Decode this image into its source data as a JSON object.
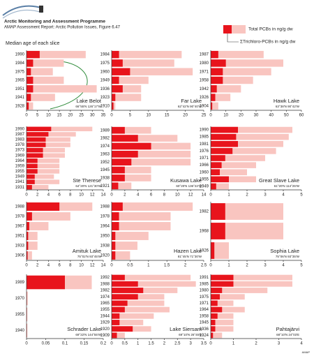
{
  "header": {
    "title": "Arctic Monitoring and Assessment Programme",
    "subtitle": "AMAP Assessment Report: Arctic Pollution Issues, Figure 6.47"
  },
  "legend": [
    "Total PCBs in ng/g dw",
    "ΣTrichloro-PCBs in ng/g dw"
  ],
  "y_axis_label": "Median age of each slice",
  "footer": "AMAP",
  "chart_data": [
    {
      "type": "hbar",
      "title": "Lake Belot",
      "subtitle": "66°55'N 126°17'W",
      "categories": [
        "1990",
        "1984",
        "1975",
        "1965",
        "1951",
        "1941",
        "1928"
      ],
      "series": [
        {
          "color": "#f9c5c0",
          "values": [
            27,
            17,
            12,
            17,
            32,
            13,
            3
          ]
        },
        {
          "color": "#e8141c",
          "values": [
            6,
            3,
            2,
            3,
            3,
            2,
            1
          ]
        }
      ],
      "xlim": [
        0,
        35
      ],
      "xticks": [
        0,
        5,
        10,
        15,
        20,
        25,
        30,
        35
      ]
    },
    {
      "type": "hbar",
      "title": "Far Lake",
      "subtitle": "62°42'N 90°40'W",
      "categories": [
        "1984",
        "1975",
        "1960",
        "1949",
        "1936",
        "1923",
        "1910"
      ],
      "series": [
        {
          "color": "#f9c5c0",
          "values": [
            19,
            17,
            22,
            10,
            8,
            8,
            1
          ]
        },
        {
          "color": "#e8141c",
          "values": [
            2,
            3,
            5,
            2,
            3,
            1,
            0.5
          ]
        }
      ],
      "xlim": [
        0,
        25
      ],
      "xticks": [
        0,
        5,
        10,
        15,
        20,
        25
      ]
    },
    {
      "type": "hbar",
      "title": "Hawk Lake",
      "subtitle": "63°38'N 90°42'W",
      "categories": [
        "1987",
        "1980",
        "1971",
        "1958",
        "1942",
        "1926",
        "1904"
      ],
      "series": [
        {
          "color": "#f9c5c0",
          "values": [
            35,
            48,
            40,
            28,
            20,
            13,
            5
          ]
        },
        {
          "color": "#e8141c",
          "values": [
            5,
            10,
            8,
            8,
            4,
            3,
            1
          ]
        }
      ],
      "xlim": [
        0,
        60
      ],
      "xticks": [
        0,
        10,
        20,
        30,
        40,
        50,
        60
      ]
    },
    {
      "type": "hbar",
      "title": "Ste Therese",
      "subtitle": "64°20'N 121°30'W",
      "categories": [
        "1990",
        "1987",
        "1983",
        "1978",
        "1973",
        "1969",
        "1964",
        "1959",
        "1955",
        "1949",
        "1941",
        "1931"
      ],
      "series": [
        {
          "color": "#f9c5c0",
          "values": [
            12,
            9,
            8,
            8,
            7,
            7,
            6,
            6,
            6,
            5,
            6,
            4
          ]
        },
        {
          "color": "#e8141c",
          "values": [
            4.5,
            4,
            3.5,
            3.5,
            3,
            3,
            2,
            2,
            2,
            1.5,
            1.5,
            1
          ]
        }
      ],
      "xlim": [
        0,
        14
      ],
      "xticks": [
        0,
        2,
        4,
        6,
        8,
        10,
        12,
        14
      ]
    },
    {
      "type": "hbar",
      "title": "Kusawa Lake",
      "subtitle": "60°20'N 136°22'W",
      "categories": [
        "1989",
        "1982",
        "1974",
        "1963",
        "1952",
        "1945",
        "1938",
        "1921"
      ],
      "series": [
        {
          "color": "#f9c5c0",
          "values": [
            6,
            10,
            12,
            12,
            12,
            6,
            6,
            3
          ]
        },
        {
          "color": "#e8141c",
          "values": [
            2,
            4,
            6,
            4,
            3,
            2,
            2,
            1
          ]
        }
      ],
      "xlim": [
        0,
        14
      ],
      "xticks": [
        0,
        2,
        4,
        6,
        8,
        10,
        12,
        14
      ]
    },
    {
      "type": "hbar",
      "title": "Great Slave Lake",
      "subtitle": "61°20'N 114°25'W",
      "categories": [
        "1990",
        "1985",
        "1981",
        "1976",
        "1971",
        "1966",
        "1960",
        "1955",
        "1949"
      ],
      "series": [
        {
          "color": "#f9c5c0",
          "values": [
            4.5,
            4.3,
            4,
            3.6,
            3,
            2.5,
            2,
            2.5,
            1
          ]
        },
        {
          "color": "#e8141c",
          "values": [
            1.5,
            1.4,
            1.5,
            1.2,
            0.8,
            0.6,
            0.5,
            1,
            0.3
          ]
        }
      ],
      "xlim": [
        0,
        5
      ],
      "xticks": [
        0,
        1,
        2,
        3,
        4,
        5
      ]
    },
    {
      "type": "hbar",
      "title": "Amituk Lake",
      "subtitle": "75°02'N 93°45'W",
      "categories": [
        "1988",
        "1978",
        "1967",
        "1951",
        "1933",
        "1906"
      ],
      "series": [
        {
          "color": "#f9c5c0",
          "values": [
            12,
            8,
            4,
            2,
            2,
            1
          ]
        },
        {
          "color": "#e8141c",
          "values": [
            6,
            1,
            0.5,
            0.3,
            0.3,
            0.2
          ]
        }
      ],
      "xlim": [
        0,
        14
      ],
      "xticks": [
        0,
        2,
        4,
        6,
        8,
        10,
        12,
        14
      ]
    },
    {
      "type": "hbar",
      "title": "Hazen Lake",
      "subtitle": "81°45'N 71°30'W",
      "categories": [
        "1988",
        "1978",
        "1964",
        "1950",
        "1938",
        "1920"
      ],
      "series": [
        {
          "color": "#f9c5c0",
          "values": [
            2.2,
            1.6,
            1.6,
            1,
            0.7,
            0.5
          ]
        },
        {
          "color": "#e8141c",
          "values": [
            0.3,
            0.2,
            0.2,
            0.1,
            0.1,
            0.1
          ]
        }
      ],
      "xlim": [
        0,
        2.5
      ],
      "xticks": [
        0,
        0.5,
        1,
        1.5,
        2,
        2.5
      ]
    },
    {
      "type": "hbar",
      "title": "Sophia Lake",
      "subtitle": "75°06'N 93°35'W",
      "categories": [
        "1982",
        "1968",
        "1926"
      ],
      "series": [
        {
          "color": "#f9c5c0",
          "values": [
            4,
            4,
            1
          ]
        },
        {
          "color": "#e8141c",
          "values": [
            0.8,
            0.8,
            0.2
          ]
        }
      ],
      "xlim": [
        0,
        5
      ],
      "xticks": [
        0,
        1,
        2,
        3,
        4,
        5
      ]
    },
    {
      "type": "hbar",
      "title": "Schrader Lake",
      "subtitle": "69°22'N 144°55'W",
      "categories": [
        "1989",
        "1970",
        "1955",
        "1940"
      ],
      "series": [
        {
          "color": "#f9c5c0",
          "values": [
            0.17,
            0.003,
            0.002,
            0.002
          ]
        },
        {
          "color": "#e8141c",
          "values": [
            0.1,
            0.001,
            0.001,
            0.001
          ]
        }
      ],
      "xlim": [
        0,
        0.2
      ],
      "xticks": [
        0,
        0.05,
        0.1,
        0.15,
        0.2
      ]
    },
    {
      "type": "hbar",
      "title": "Lake Siersam",
      "subtitle": "69°10'N 26°45'E",
      "categories": [
        "1992",
        "1988",
        "1982",
        "1974",
        "1965",
        "1955",
        "1944",
        "1929",
        "1920",
        "1909"
      ],
      "series": [
        {
          "color": "#f9c5c0",
          "values": [
            3,
            3.2,
            2.5,
            2,
            2,
            2.2,
            1.6,
            1.2,
            1.5,
            0.5
          ]
        },
        {
          "color": "#e8141c",
          "values": [
            0.5,
            1,
            1.2,
            1,
            0.6,
            0.5,
            0.3,
            0.3,
            0.8,
            0.2
          ]
        }
      ],
      "xlim": [
        0,
        3.5
      ],
      "xticks": [
        0,
        0.5,
        1,
        1.5,
        2,
        2.5,
        3,
        3.5
      ]
    },
    {
      "type": "hbar",
      "title": "Pahtajärvi",
      "subtitle": "68°10'N 24°03'E",
      "categories": [
        "1991",
        "1985",
        "1980",
        "1975",
        "1971",
        "1964",
        "1958",
        "1945",
        "1936",
        "1924"
      ],
      "series": [
        {
          "color": "#f9c5c0",
          "values": [
            3.6,
            3.6,
            2.5,
            1.5,
            1,
            1.5,
            1,
            1,
            1,
            0.5
          ]
        },
        {
          "color": "#e8141c",
          "values": [
            1,
            1,
            0.5,
            0.4,
            0.3,
            0.5,
            0.3,
            0.2,
            0.2,
            0.1
          ]
        }
      ],
      "xlim": [
        0,
        4
      ],
      "xticks": [
        0,
        1,
        2,
        3,
        4
      ]
    }
  ]
}
